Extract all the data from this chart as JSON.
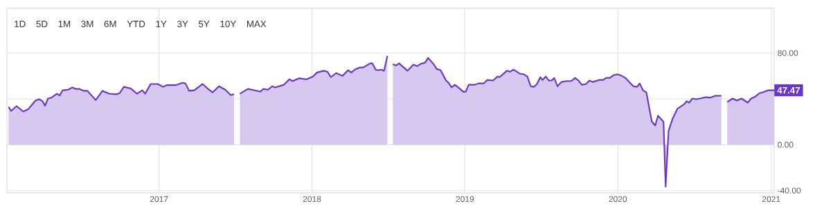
{
  "chart_data": {
    "type": "area",
    "annotations": [
      "1D",
      "5D",
      "1M",
      "3M",
      "6M",
      "YTD",
      "1Y",
      "3Y",
      "5Y",
      "10Y",
      "MAX",
      {
        "text": "47.47",
        "x": "2021-01-08",
        "y": 47.47
      }
    ],
    "x": [
      "2016-01-08",
      "2016-01-14",
      "2016-01-27",
      "2016-02-12",
      "2016-02-24",
      "2016-03-12",
      "2016-03-21",
      "2016-03-29",
      "2016-04-04",
      "2016-04-11",
      "2016-04-19",
      "2016-05-02",
      "2016-05-09",
      "2016-05-16",
      "2016-05-29",
      "2016-06-08",
      "2016-06-16",
      "2016-06-24",
      "2016-07-06",
      "2016-07-14",
      "2016-08-03",
      "2016-08-19",
      "2016-09-04",
      "2016-09-21",
      "2016-09-29",
      "2016-10-09",
      "2016-10-26",
      "2016-11-09",
      "2016-11-22",
      "2016-11-29",
      "2016-12-12",
      "2016-12-29",
      "2017-01-11",
      "2017-01-19",
      "2017-02-10",
      "2017-02-26",
      "2017-03-05",
      "2017-03-14",
      "2017-03-26",
      "2017-04-15",
      "2017-04-28",
      "2017-05-09",
      "2017-05-24",
      "2017-06-08",
      "2017-06-21",
      "2017-06-29",
      "2017-07-06",
      "2017-07-13",
      "2017-08-01",
      "2017-08-16",
      "2017-08-31",
      "2017-09-07",
      "2017-09-18",
      "2017-09-28",
      "2017-10-05",
      "2017-10-26",
      "2017-11-08",
      "2017-11-16",
      "2017-12-01",
      "2017-12-19",
      "2018-01-03",
      "2018-01-13",
      "2018-01-29",
      "2018-02-07",
      "2018-02-15",
      "2018-02-28",
      "2018-03-15",
      "2018-03-28",
      "2018-04-05",
      "2018-04-13",
      "2018-04-25",
      "2018-05-03",
      "2018-05-20",
      "2018-05-25",
      "2018-06-02",
      "2018-06-08",
      "2018-06-15",
      "2018-06-22",
      "2018-06-30",
      "2018-07-06",
      "2018-07-13",
      "2018-07-20",
      "2018-07-28",
      "2018-08-17",
      "2018-08-31",
      "2018-09-09",
      "2018-09-17",
      "2018-09-28",
      "2018-10-05",
      "2018-10-18",
      "2018-10-26",
      "2018-11-04",
      "2018-11-17",
      "2018-11-23",
      "2018-11-30",
      "2018-12-08",
      "2018-12-16",
      "2018-12-28",
      "2019-01-03",
      "2019-01-10",
      "2019-01-25",
      "2019-02-02",
      "2019-02-15",
      "2019-02-23",
      "2019-03-09",
      "2019-03-20",
      "2019-03-25",
      "2019-04-11",
      "2019-04-19",
      "2019-04-27",
      "2019-05-12",
      "2019-05-22",
      "2019-05-30",
      "2019-06-07",
      "2019-06-15",
      "2019-06-22",
      "2019-06-30",
      "2019-07-05",
      "2019-07-13",
      "2019-07-20",
      "2019-07-27",
      "2019-08-02",
      "2019-08-10",
      "2019-08-19",
      "2019-09-01",
      "2019-09-12",
      "2019-09-21",
      "2019-09-29",
      "2019-10-07",
      "2019-10-17",
      "2019-10-25",
      "2019-11-02",
      "2019-11-17",
      "2019-11-27",
      "2019-12-04",
      "2019-12-13",
      "2019-12-22",
      "2019-12-30",
      "2020-01-07",
      "2020-01-19",
      "2020-01-30",
      "2020-02-07",
      "2020-02-16",
      "2020-02-22",
      "2020-03-01",
      "2020-03-09",
      "2020-03-17",
      "2020-03-22",
      "2020-03-30",
      "2020-04-06",
      "2020-04-19",
      "2020-04-24",
      "2020-05-01",
      "2020-05-11",
      "2020-05-22",
      "2020-06-08",
      "2020-06-13",
      "2020-06-19",
      "2020-06-27",
      "2020-07-06",
      "2020-07-15",
      "2020-07-30",
      "2020-08-08",
      "2020-08-21",
      "2020-09-04",
      "2020-09-11",
      "2020-09-18",
      "2020-10-01",
      "2020-10-11",
      "2020-10-22",
      "2020-11-06",
      "2020-11-14",
      "2020-11-24",
      "2020-12-04",
      "2020-12-12",
      "2020-12-25",
      "2021-01-08"
    ],
    "series": [
      {
        "color": "#6a35c8",
        "values": [
          33,
          29.5,
          33.7,
          29,
          31,
          38.5,
          39.7,
          38,
          34,
          40.3,
          41,
          44.5,
          43,
          47.5,
          48,
          50,
          48.7,
          48.7,
          47,
          47,
          39,
          47,
          44.5,
          44,
          45,
          50.5,
          49,
          44.5,
          47.5,
          44.5,
          53,
          53,
          50.5,
          52,
          52,
          54,
          53.5,
          47,
          47.5,
          53,
          48.7,
          45.7,
          51,
          48,
          43.3,
          44,
          null,
          44.5,
          48.7,
          47.5,
          46.3,
          48.7,
          48,
          51,
          50,
          52.3,
          57,
          55.5,
          58,
          57,
          59.5,
          63,
          64.5,
          63.7,
          59,
          62.5,
          60,
          65,
          63,
          65.5,
          67.4,
          67.4,
          71,
          71,
          65.5,
          65,
          65.5,
          64.5,
          77.6,
          null,
          70.4,
          69,
          71,
          64.5,
          69.8,
          68.6,
          70.4,
          71.6,
          75.8,
          70.4,
          66,
          65,
          56,
          54,
          50,
          52.3,
          50,
          46.3,
          46.3,
          52.3,
          52.3,
          53.5,
          53.5,
          56.5,
          56,
          59.5,
          59,
          64.5,
          63.7,
          65.5,
          62,
          61.4,
          59.5,
          51,
          50.5,
          53,
          59,
          56.5,
          59.5,
          56,
          56,
          58.3,
          51,
          54.7,
          55.5,
          55.5,
          58.3,
          56,
          52.3,
          53,
          56,
          54.7,
          56.5,
          56.5,
          58.3,
          58.3,
          60.7,
          61.4,
          60.7,
          58.3,
          54,
          51,
          50.5,
          53.5,
          47.5,
          45.7,
          30,
          20.4,
          16.8,
          25.3,
          20,
          -36.5,
          12,
          23,
          31.3,
          35.5,
          38,
          36.7,
          40.3,
          39.7,
          40.3,
          41.5,
          41,
          42.7,
          42.7,
          null,
          37.3,
          40.3,
          38.5,
          40.3,
          36.7,
          40.3,
          42,
          45,
          45.7,
          47.5,
          47.47
        ]
      }
    ],
    "xlim": [
      "2016-01-04",
      "2021-01-08"
    ],
    "ylim": [
      -42,
      119
    ],
    "xticks": [
      {
        "value": "2017-01-01",
        "label": "2017"
      },
      {
        "value": "2018-01-01",
        "label": "2018"
      },
      {
        "value": "2019-01-01",
        "label": "2019"
      },
      {
        "value": "2020-01-01",
        "label": "2020"
      },
      {
        "value": "2021-01-01",
        "label": "2021"
      }
    ],
    "yticks": [
      {
        "value": -40,
        "label": "-40.00"
      },
      {
        "value": 0,
        "label": "0.00"
      },
      {
        "value": 40,
        "label": null
      },
      {
        "value": 80,
        "label": "80.00"
      }
    ],
    "grid": true
  }
}
